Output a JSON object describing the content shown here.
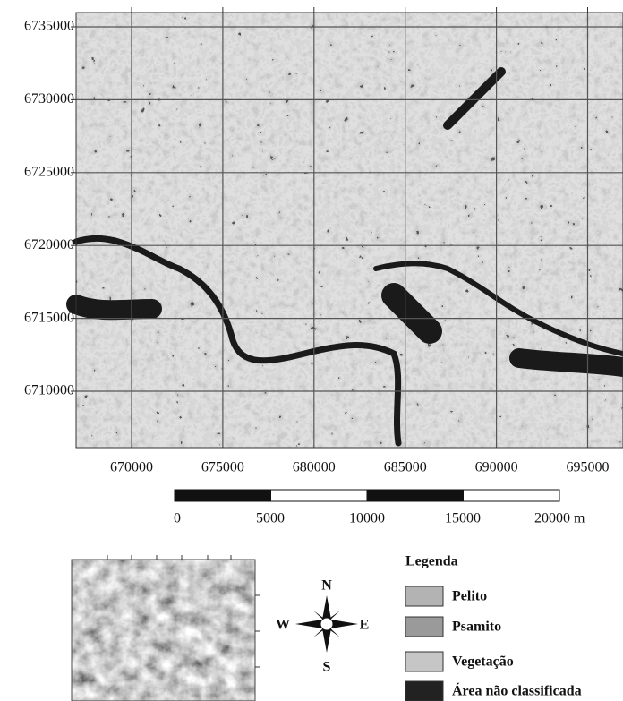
{
  "map": {
    "x_ticks": [
      670000,
      675000,
      680000,
      685000,
      690000,
      695000
    ],
    "y_ticks": [
      6735000,
      6730000,
      6725000,
      6720000,
      6715000,
      6710000
    ]
  },
  "scale_bar": {
    "labels": [
      "0",
      "5000",
      "10000",
      "15000",
      "20000 m"
    ]
  },
  "compass": {
    "north": "N",
    "south": "S",
    "east": "E",
    "west": "W"
  },
  "legend": {
    "title": "Legenda",
    "items": [
      {
        "label": "Pelito",
        "color": "#b3b3b3"
      },
      {
        "label": "Psamito",
        "color": "#9a9a9a"
      },
      {
        "label": "Vegetação",
        "color": "#c6c6c6"
      },
      {
        "label": "Área não classificada",
        "color": "#222222"
      }
    ]
  }
}
